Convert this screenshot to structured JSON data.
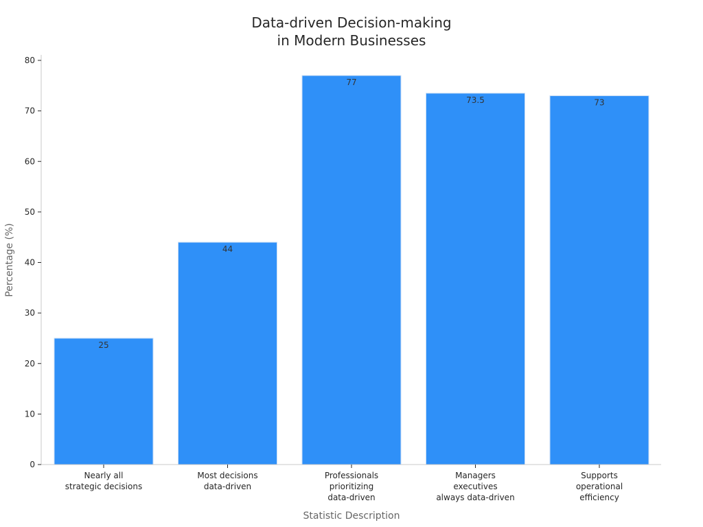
{
  "colors": {
    "bar": "#2f90f8",
    "axis": "#c8c8c8",
    "text": "#262626",
    "axis_title": "#666666"
  },
  "chart_data": {
    "type": "bar",
    "title": "Data-driven Decision-making\nin Modern Businesses",
    "xlabel": "Statistic Description",
    "ylabel": "Percentage (%)",
    "ylim": [
      0,
      80
    ],
    "yticks": [
      0,
      10,
      20,
      30,
      40,
      50,
      60,
      70,
      80
    ],
    "grid": false,
    "categories": [
      "Nearly all\nstrategic decisions",
      "Most decisions\ndata-driven",
      "Professionals\nprioritizing\ndata-driven",
      "Managers\nexecutives\nalways data-driven",
      "Supports\noperational\nefficiency"
    ],
    "values": [
      25,
      44,
      77,
      73.5,
      73
    ],
    "value_labels": [
      "25",
      "44",
      "77",
      "73.5",
      "73"
    ]
  }
}
